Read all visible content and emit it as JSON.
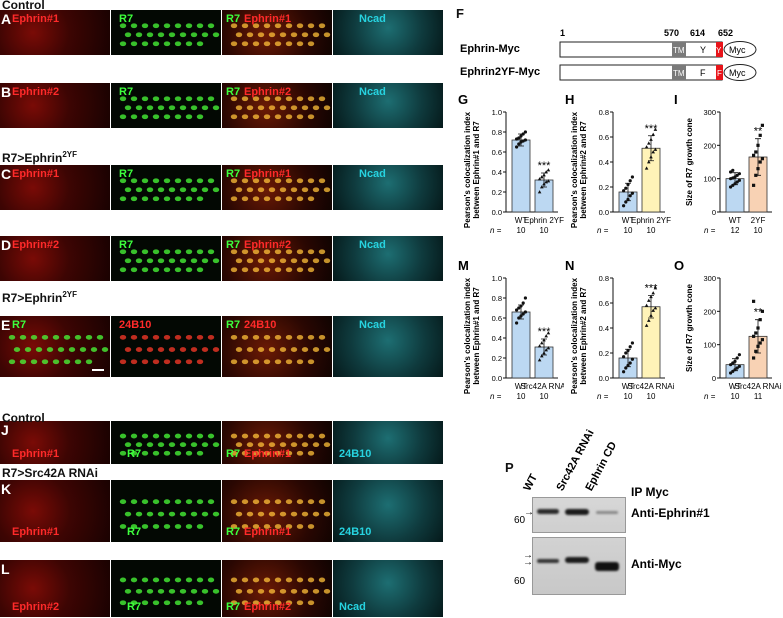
{
  "row_headers": {
    "control_top": "Control",
    "r7_ephrin_1": "R7>Ephrin",
    "r7_ephrin_1_sup": "2YF",
    "r7_ephrin_2": "R7>Ephrin",
    "r7_ephrin_2_sup": "2YF",
    "control_bottom": "Control",
    "r7_src": "R7>Src42A RNAi"
  },
  "panels": [
    {
      "letter": "A",
      "labels": [
        "Ephrin#1",
        "R7",
        "R7",
        "Ephrin#1",
        "Ncad"
      ]
    },
    {
      "letter": "B",
      "labels": [
        "Ephrin#2",
        "R7",
        "R7",
        "Ephrin#2",
        "Ncad"
      ]
    },
    {
      "letter": "C",
      "labels": [
        "Ephrin#1",
        "R7",
        "R7",
        "Ephrin#1",
        "Ncad"
      ]
    },
    {
      "letter": "D",
      "labels": [
        "Ephrin#2",
        "R7",
        "R7",
        "Ephrin#2",
        "Ncad"
      ]
    },
    {
      "letter": "E",
      "labels": [
        "R7",
        "24B10",
        "R7",
        "24B10",
        "Ncad"
      ]
    },
    {
      "letter": "J",
      "labels": [
        "Ephrin#1",
        "R7",
        "R7",
        "Ephrin#1",
        "24B10"
      ]
    },
    {
      "letter": "K",
      "labels": [
        "Ephrin#1",
        "R7",
        "R7",
        "Ephrin#1",
        "24B10"
      ]
    },
    {
      "letter": "L",
      "labels": [
        "Ephrin#2",
        "R7",
        "R7",
        "Ephrin#2",
        "Ncad"
      ]
    }
  ],
  "construct": {
    "letter": "F",
    "positions": [
      "1",
      "570",
      "614",
      "652"
    ],
    "rows": [
      {
        "name": "Ephrin-Myc",
        "tm": "TM",
        "res": "Y",
        "tail": "Y",
        "tag": "Myc"
      },
      {
        "name": "Ephrin2YF-Myc",
        "tm": "TM",
        "res": "F",
        "tail": "F",
        "tag": "Myc"
      }
    ]
  },
  "charts": [
    {
      "letter": "G",
      "ylabel": [
        "Pearson's colocalization index",
        "between Ephrin#1 and R7"
      ],
      "yticks": [
        "0.0",
        "0.2",
        "0.4",
        "0.6",
        "0.8",
        "1.0"
      ],
      "cats": [
        "WT",
        "Ephrin 2YF"
      ],
      "n": [
        "10",
        "10"
      ],
      "sig": "***",
      "ymax": 1.0
    },
    {
      "letter": "H",
      "ylabel": [
        "Pearson's colocalization index",
        "between Ephrin#2 and R7"
      ],
      "yticks": [
        "0.0",
        "0.2",
        "0.4",
        "0.6",
        "0.8"
      ],
      "cats": [
        "WT",
        "Ephrin 2YF"
      ],
      "n": [
        "10",
        "10"
      ],
      "sig": "***",
      "ymax": 0.8
    },
    {
      "letter": "I",
      "ylabel": [
        "Size of R7 growth cone"
      ],
      "yticks": [
        "0",
        "100",
        "200",
        "300"
      ],
      "cats": [
        "WT",
        "2YF"
      ],
      "n": [
        "12",
        "10"
      ],
      "sig": "**",
      "ymax": 300
    },
    {
      "letter": "M",
      "ylabel": [
        "Pearson's colocalization index",
        "between Ephrin#1 and R7"
      ],
      "yticks": [
        "0.0",
        "0.2",
        "0.4",
        "0.6",
        "0.8",
        "1.0"
      ],
      "cats": [
        "WT",
        "Src42A RNAi"
      ],
      "n": [
        "10",
        "10"
      ],
      "sig": "***",
      "ymax": 1.0
    },
    {
      "letter": "N",
      "ylabel": [
        "Pearson's colocalization index",
        "between Ephrin#2 and R7"
      ],
      "yticks": [
        "0.0",
        "0.2",
        "0.4",
        "0.6",
        "0.8"
      ],
      "cats": [
        "WT",
        "Src42A RNAi"
      ],
      "n": [
        "10",
        "10"
      ],
      "sig": "***",
      "ymax": 0.8
    },
    {
      "letter": "O",
      "ylabel": [
        "Size of R7 growth cone"
      ],
      "yticks": [
        "0",
        "100",
        "200",
        "300"
      ],
      "cats": [
        "WT",
        "Src42A RNAi"
      ],
      "n": [
        "10",
        "11"
      ],
      "sig": "**",
      "ymax": 300
    }
  ],
  "n_label": "n =",
  "chart_data": [
    {
      "type": "bar",
      "panel": "G",
      "categories": [
        "WT",
        "Ephrin 2YF"
      ],
      "values": [
        0.72,
        0.32
      ],
      "errors": [
        0.06,
        0.07
      ],
      "ylim": [
        0,
        1.0
      ],
      "points": [
        [
          0.65,
          0.68,
          0.7,
          0.71,
          0.72,
          0.73,
          0.74,
          0.76,
          0.78,
          0.8
        ],
        [
          0.2,
          0.25,
          0.28,
          0.3,
          0.31,
          0.33,
          0.35,
          0.37,
          0.4,
          0.42
        ]
      ]
    },
    {
      "type": "bar",
      "panel": "H",
      "categories": [
        "WT",
        "Ephrin 2YF"
      ],
      "values": [
        0.16,
        0.51
      ],
      "errors": [
        0.07,
        0.1
      ],
      "ylim": [
        0,
        0.8
      ],
      "points": [
        [
          0.05,
          0.08,
          0.1,
          0.13,
          0.15,
          0.17,
          0.19,
          0.22,
          0.25,
          0.28
        ],
        [
          0.35,
          0.4,
          0.44,
          0.48,
          0.5,
          0.52,
          0.55,
          0.58,
          0.62,
          0.66
        ]
      ]
    },
    {
      "type": "bar",
      "panel": "I",
      "categories": [
        "WT",
        "2YF"
      ],
      "values": [
        100,
        165
      ],
      "errors": [
        18,
        55
      ],
      "ylim": [
        0,
        300
      ],
      "points": [
        [
          75,
          80,
          85,
          90,
          95,
          100,
          102,
          105,
          110,
          115,
          120,
          125
        ],
        [
          80,
          110,
          130,
          150,
          160,
          170,
          180,
          200,
          230,
          260
        ]
      ]
    },
    {
      "type": "bar",
      "panel": "M",
      "categories": [
        "WT",
        "Src42A RNAi"
      ],
      "values": [
        0.66,
        0.31
      ],
      "errors": [
        0.07,
        0.08
      ],
      "ylim": [
        0,
        1.0
      ],
      "points": [
        [
          0.55,
          0.6,
          0.62,
          0.64,
          0.66,
          0.68,
          0.7,
          0.72,
          0.75,
          0.8
        ],
        [
          0.18,
          0.22,
          0.25,
          0.28,
          0.3,
          0.32,
          0.35,
          0.38,
          0.42,
          0.45
        ]
      ]
    },
    {
      "type": "bar",
      "panel": "N",
      "categories": [
        "WT",
        "Src42A RNAi"
      ],
      "values": [
        0.16,
        0.57
      ],
      "errors": [
        0.07,
        0.09
      ],
      "ylim": [
        0,
        0.8
      ],
      "points": [
        [
          0.05,
          0.08,
          0.1,
          0.12,
          0.15,
          0.17,
          0.2,
          0.22,
          0.25,
          0.28
        ],
        [
          0.42,
          0.46,
          0.5,
          0.54,
          0.56,
          0.58,
          0.62,
          0.65,
          0.68,
          0.72
        ]
      ]
    },
    {
      "type": "bar",
      "panel": "O",
      "categories": [
        "WT",
        "Src42A RNAi"
      ],
      "values": [
        40,
        125
      ],
      "errors": [
        18,
        50
      ],
      "ylim": [
        0,
        300
      ],
      "points": [
        [
          15,
          20,
          25,
          30,
          35,
          40,
          45,
          50,
          60,
          70
        ],
        [
          60,
          80,
          95,
          105,
          115,
          125,
          135,
          150,
          175,
          200,
          230
        ]
      ]
    }
  ],
  "blot": {
    "letter": "P",
    "lanes": [
      "WT",
      "Src42A RNAi",
      "Ephrin CD"
    ],
    "ip": "IP Myc",
    "top_label": "Anti-Ephrin#1",
    "bottom_label": "Anti-Myc",
    "mw_top": "60",
    "mw_bottom": "60"
  }
}
